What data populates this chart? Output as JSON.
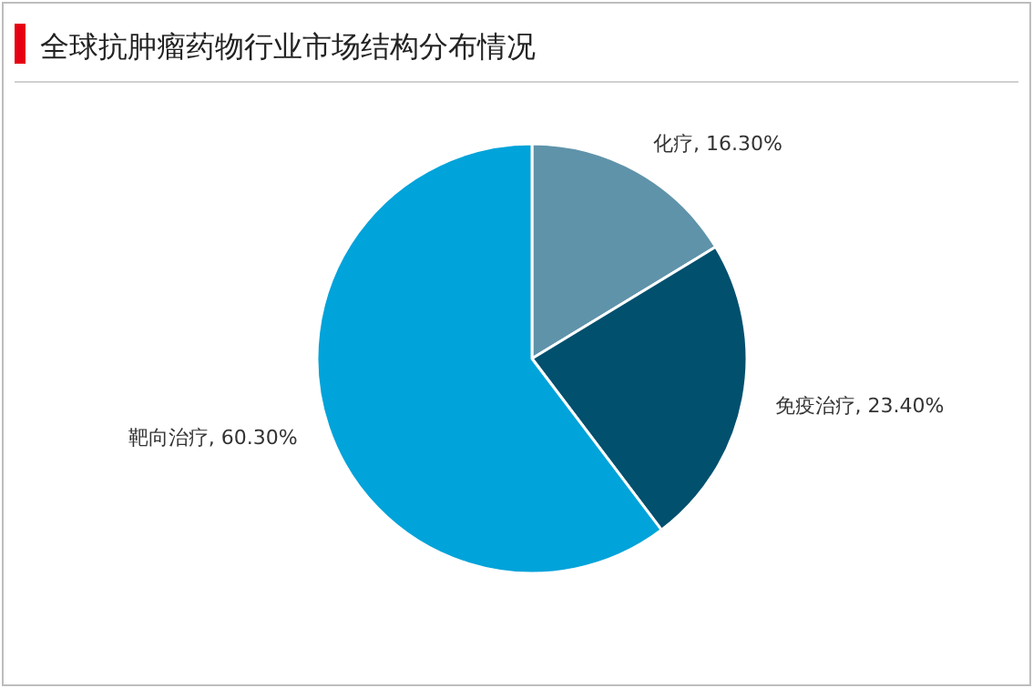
{
  "chart_data": {
    "type": "pie",
    "title": "全球抗肿瘤药物行业市场结构分布情况",
    "categories": [
      "化疗",
      "免疫治疗",
      "靶向治疗"
    ],
    "values": [
      16.3,
      23.4,
      60.3
    ],
    "value_labels": [
      "16.30%",
      "23.40%",
      "60.30%"
    ],
    "colors": [
      "#5f93aa",
      "#00506e",
      "#00a3da"
    ]
  }
}
